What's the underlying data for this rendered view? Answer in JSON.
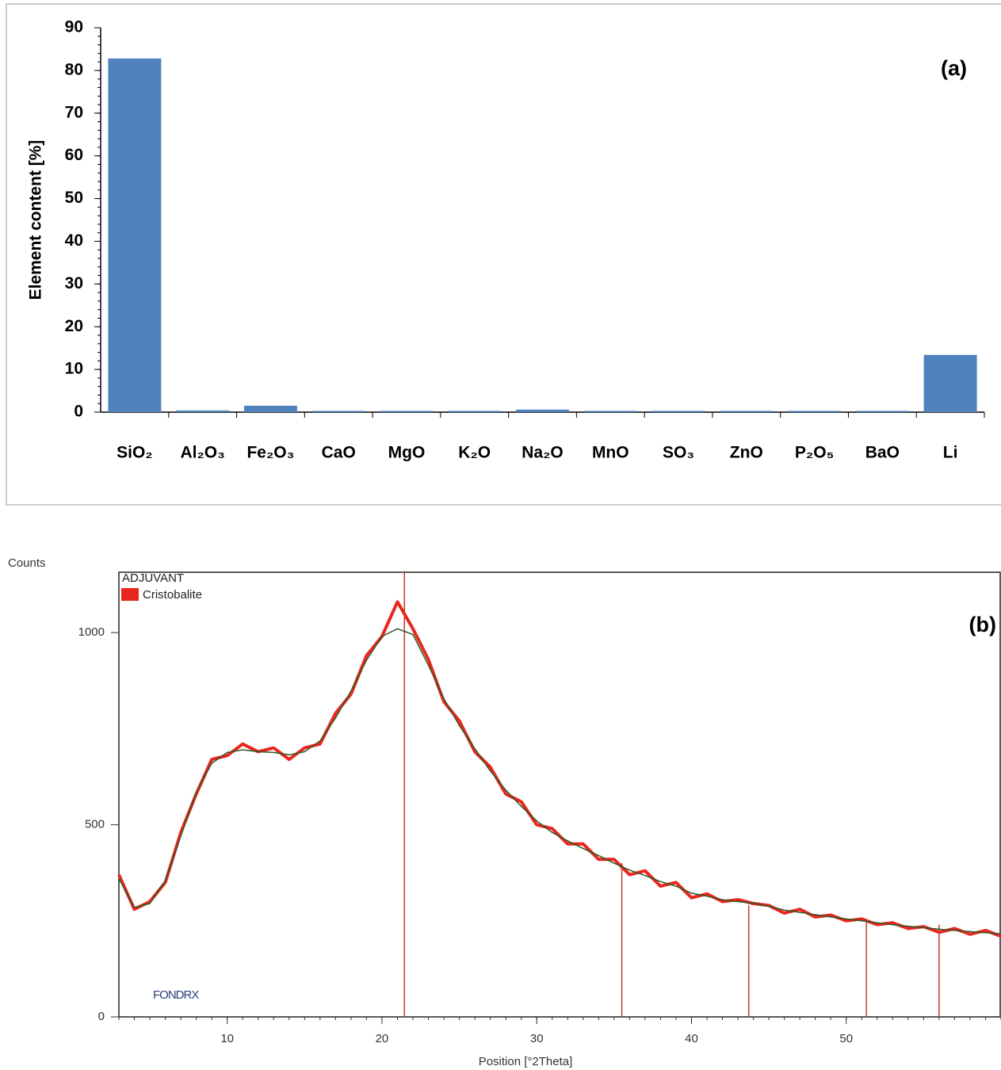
{
  "chart_data": [
    {
      "type": "bar",
      "annotation": "(a)",
      "y_label": "Element content [%]",
      "categories": [
        "SiO₂",
        "Al₂O₃",
        "Fe₂O₃",
        "CaO",
        "MgO",
        "K₂O",
        "Na₂O",
        "MnO",
        "SO₃",
        "ZnO",
        "P₂O₅",
        "BaO",
        "Li"
      ],
      "values": [
        82.8,
        0.4,
        1.5,
        0.3,
        0.3,
        0.3,
        0.6,
        0.3,
        0.3,
        0.3,
        0.3,
        0.3,
        13.4
      ],
      "color": "#4f81bd",
      "ylim": [
        0,
        90
      ],
      "yticks": [
        0,
        10,
        20,
        30,
        40,
        50,
        60,
        70,
        80,
        90
      ]
    },
    {
      "type": "line",
      "annotation": "(b)",
      "y_label": "Counts",
      "x_label": "Position [°2Theta]",
      "legend_title": "ADJUVANT",
      "note": "FONDRX",
      "x": [
        3,
        4,
        5,
        6,
        7,
        8,
        9,
        10,
        11,
        12,
        13,
        14,
        15,
        16,
        17,
        18,
        19,
        20,
        21,
        22,
        23,
        24,
        25,
        26,
        27,
        28,
        29,
        30,
        31,
        32,
        33,
        34,
        35,
        36,
        37,
        38,
        39,
        40,
        41,
        42,
        43,
        44,
        45,
        46,
        47,
        48,
        49,
        50,
        51,
        52,
        53,
        54,
        55,
        56,
        57,
        58,
        59,
        60
      ],
      "series": [
        {
          "name": "Cristobalite",
          "color": "#e8261e",
          "values": [
            370,
            280,
            300,
            350,
            480,
            580,
            670,
            680,
            710,
            690,
            700,
            670,
            700,
            710,
            790,
            840,
            940,
            990,
            1080,
            1010,
            930,
            820,
            770,
            690,
            650,
            580,
            560,
            500,
            490,
            450,
            450,
            410,
            410,
            370,
            380,
            340,
            350,
            310,
            320,
            300,
            305,
            295,
            290,
            270,
            280,
            260,
            265,
            250,
            255,
            240,
            245,
            230,
            235,
            220,
            230,
            215,
            225,
            210
          ]
        },
        {
          "color": "#2d5a27",
          "values": [
            360,
            285,
            295,
            355,
            470,
            585,
            660,
            688,
            695,
            690,
            688,
            682,
            690,
            718,
            778,
            848,
            928,
            990,
            1010,
            995,
            915,
            828,
            758,
            698,
            640,
            590,
            548,
            510,
            480,
            458,
            438,
            420,
            400,
            382,
            368,
            352,
            340,
            322,
            314,
            305,
            300,
            296,
            288,
            278,
            272,
            266,
            260,
            255,
            250,
            245,
            240,
            236,
            232,
            228,
            225,
            222,
            219,
            216
          ]
        }
      ],
      "peaks": {
        "x": [
          21.45,
          35.5,
          43.7,
          51.3,
          56.0
        ],
        "values": [
          1160,
          400,
          290,
          250,
          240
        ],
        "color": "#c0392b"
      },
      "xlim": [
        3,
        60
      ],
      "ylim": [
        0,
        1157
      ],
      "xticks": [
        10,
        20,
        30,
        40,
        50
      ],
      "yticks": [
        0,
        500,
        1000
      ]
    }
  ]
}
